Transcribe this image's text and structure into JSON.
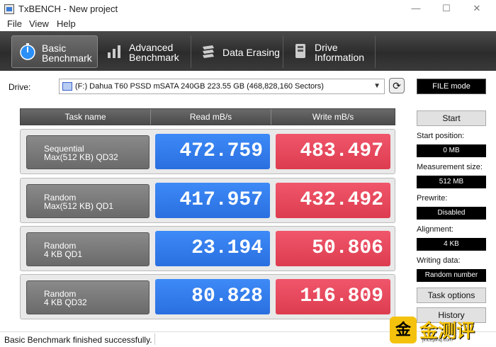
{
  "window": {
    "title": "TxBENCH - New project"
  },
  "menu": [
    "File",
    "View",
    "Help"
  ],
  "toolbar": [
    {
      "label": "Basic\nBenchmark",
      "icon": "gauge-icon",
      "active": true
    },
    {
      "label": "Advanced\nBenchmark",
      "icon": "bar-chart-icon",
      "active": false
    },
    {
      "label": "Data Erasing",
      "icon": "eraser-icon",
      "active": false
    },
    {
      "label": "Drive\nInformation",
      "icon": "drive-info-icon",
      "active": false
    }
  ],
  "drive": {
    "label": "Drive:",
    "selected": "(F:) Dahua T60 PSSD mSATA 240GB  223.55 GB (468,828,160 Sectors)",
    "mode": "FILE mode"
  },
  "table": {
    "headers": [
      "Task name",
      "Read mB/s",
      "Write mB/s"
    ],
    "rows": [
      {
        "task": "Sequential\nMax(512 KB) QD32",
        "read": "472.759",
        "write": "483.497"
      },
      {
        "task": "Random\nMax(512 KB) QD1",
        "read": "417.957",
        "write": "432.492"
      },
      {
        "task": "Random\n4 KB QD1",
        "read": "23.194",
        "write": "50.806"
      },
      {
        "task": "Random\n4 KB QD32",
        "read": "80.828",
        "write": "116.809"
      }
    ]
  },
  "panel": {
    "start": "Start",
    "start_position_label": "Start position:",
    "start_position": "0 MB",
    "measurement_size_label": "Measurement size:",
    "measurement_size": "512 MB",
    "prewrite_label": "Prewrite:",
    "prewrite": "Disabled",
    "alignment_label": "Alignment:",
    "alignment": "4 KB",
    "writing_data_label": "Writing data:",
    "writing_data": "Random number",
    "task_options": "Task options",
    "history": "History"
  },
  "status": {
    "text": "Basic Benchmark finished successfully."
  },
  "watermark": {
    "badge": "金",
    "text": "金测评",
    "url": "jincepinq.com"
  },
  "colors": {
    "read": "#2a6fe0",
    "write": "#dd3c4f",
    "toolbar": "#3a3a3a",
    "watermark": "#f4c20d"
  }
}
